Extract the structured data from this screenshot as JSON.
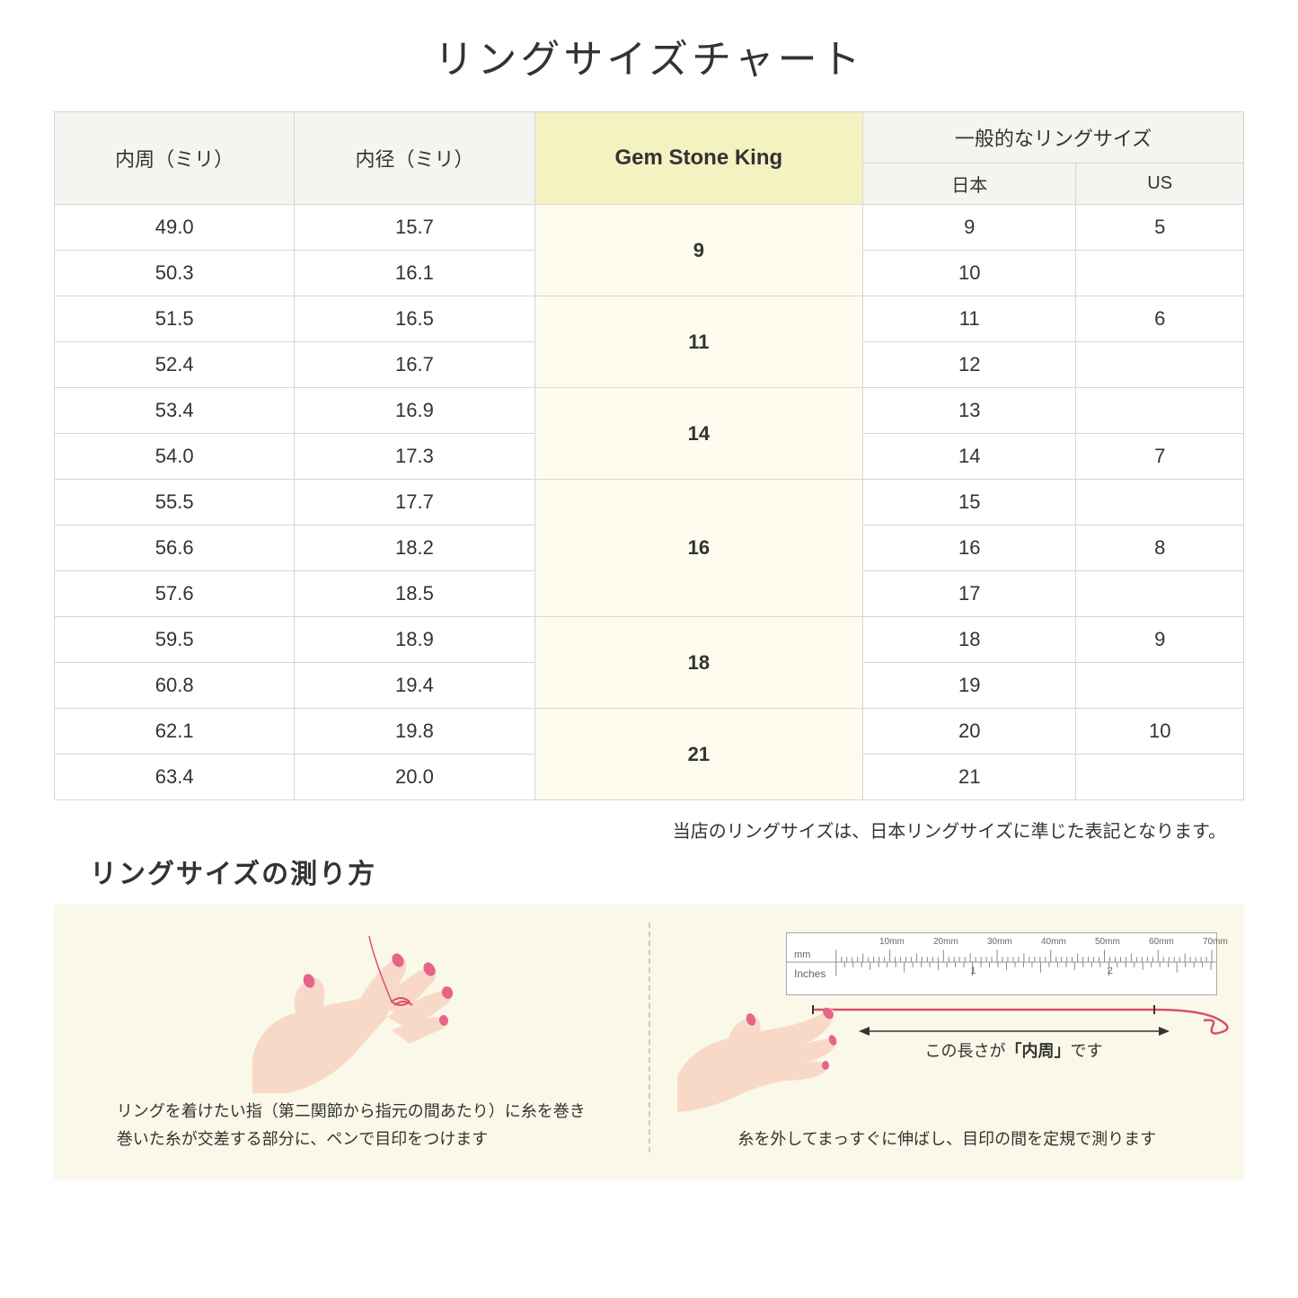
{
  "title": "リングサイズチャート",
  "table": {
    "headers": {
      "inner_circ": "内周（ミリ）",
      "inner_dia": "内径（ミリ）",
      "gsk": "Gem Stone King",
      "common": "一般的なリングサイズ",
      "jp": "日本",
      "us": "US"
    },
    "groups": [
      {
        "gsk": "9",
        "rows": [
          {
            "circ": "49.0",
            "dia": "15.7",
            "jp": "9",
            "us": "5"
          },
          {
            "circ": "50.3",
            "dia": "16.1",
            "jp": "10",
            "us": ""
          }
        ]
      },
      {
        "gsk": "11",
        "rows": [
          {
            "circ": "51.5",
            "dia": "16.5",
            "jp": "11",
            "us": "6"
          },
          {
            "circ": "52.4",
            "dia": "16.7",
            "jp": "12",
            "us": ""
          }
        ]
      },
      {
        "gsk": "14",
        "rows": [
          {
            "circ": "53.4",
            "dia": "16.9",
            "jp": "13",
            "us": ""
          },
          {
            "circ": "54.0",
            "dia": "17.3",
            "jp": "14",
            "us": "7"
          }
        ]
      },
      {
        "gsk": "16",
        "rows": [
          {
            "circ": "55.5",
            "dia": "17.7",
            "jp": "15",
            "us": ""
          },
          {
            "circ": "56.6",
            "dia": "18.2",
            "jp": "16",
            "us": "8"
          },
          {
            "circ": "57.6",
            "dia": "18.5",
            "jp": "17",
            "us": ""
          }
        ]
      },
      {
        "gsk": "18",
        "rows": [
          {
            "circ": "59.5",
            "dia": "18.9",
            "jp": "18",
            "us": "9"
          },
          {
            "circ": "60.8",
            "dia": "19.4",
            "jp": "19",
            "us": ""
          }
        ]
      },
      {
        "gsk": "21",
        "rows": [
          {
            "circ": "62.1",
            "dia": "19.8",
            "jp": "20",
            "us": "10"
          },
          {
            "circ": "63.4",
            "dia": "20.0",
            "jp": "21",
            "us": ""
          }
        ]
      }
    ]
  },
  "note": "当店のリングサイズは、日本リングサイズに準じた表記となります。",
  "measure_title": "リングサイズの測り方",
  "instructions": {
    "left": {
      "line1": "リングを着けたい指（第二関節から指元の間あたり）に糸を巻き",
      "line2": "巻いた糸が交差する部分に、ペンで目印をつけます"
    },
    "right": {
      "arrow_prefix": "この長さが",
      "arrow_bold": "「内周」",
      "arrow_suffix": "です",
      "caption": "糸を外してまっすぐに伸ばし、目印の間を定規で測ります"
    },
    "ruler": {
      "mm_label": "mm",
      "in_label": "Inches",
      "mm_ticks": [
        "10mm",
        "20mm",
        "30mm",
        "40mm",
        "50mm",
        "60mm",
        "70mm"
      ],
      "in_ticks": [
        "1",
        "2"
      ]
    }
  },
  "colors": {
    "header_bg": "#f4f4f0",
    "gsk_header_bg": "#f4f2c0",
    "gsk_cell_bg": "#fdfcef",
    "border": "#d6d6d6",
    "instruction_bg": "#faf8e8",
    "thread": "#d94f6d",
    "skin": "#f8d9c8",
    "nail": "#e8638a"
  }
}
